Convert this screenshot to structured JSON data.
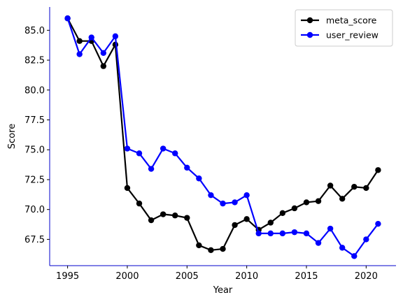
{
  "chart_data": {
    "type": "line",
    "title": "",
    "xlabel": "Year",
    "ylabel": "Score",
    "xlim": [
      1993.5,
      2022.5
    ],
    "ylim": [
      65.3,
      86.95
    ],
    "x_ticks": [
      1995,
      2000,
      2005,
      2010,
      2015,
      2020
    ],
    "y_ticks": [
      67.5,
      70.0,
      72.5,
      75.0,
      77.5,
      80.0,
      82.5,
      85.0
    ],
    "grid": false,
    "legend_position": "top-right",
    "x": [
      1995,
      1996,
      1997,
      1998,
      1999,
      2000,
      2001,
      2002,
      2003,
      2004,
      2005,
      2006,
      2007,
      2008,
      2009,
      2010,
      2011,
      2012,
      2013,
      2014,
      2015,
      2016,
      2017,
      2018,
      2019,
      2020,
      2021
    ],
    "series": [
      {
        "name": "meta_score",
        "color": "#000000",
        "values": [
          86.0,
          84.1,
          84.1,
          82.0,
          83.8,
          71.8,
          70.5,
          69.1,
          69.6,
          69.5,
          69.3,
          67.0,
          66.6,
          66.7,
          68.7,
          69.2,
          68.3,
          68.9,
          69.7,
          70.1,
          70.6,
          70.7,
          72.0,
          70.9,
          71.9,
          71.8,
          73.3
        ]
      },
      {
        "name": "user_review",
        "color": "#0000ff",
        "values": [
          86.0,
          83.0,
          84.4,
          83.1,
          84.5,
          75.1,
          74.7,
          73.4,
          75.1,
          74.7,
          73.5,
          72.6,
          71.2,
          70.5,
          70.6,
          71.2,
          68.0,
          68.0,
          68.0,
          68.1,
          68.0,
          67.2,
          68.4,
          66.8,
          66.1,
          67.5,
          68.8
        ]
      }
    ]
  }
}
